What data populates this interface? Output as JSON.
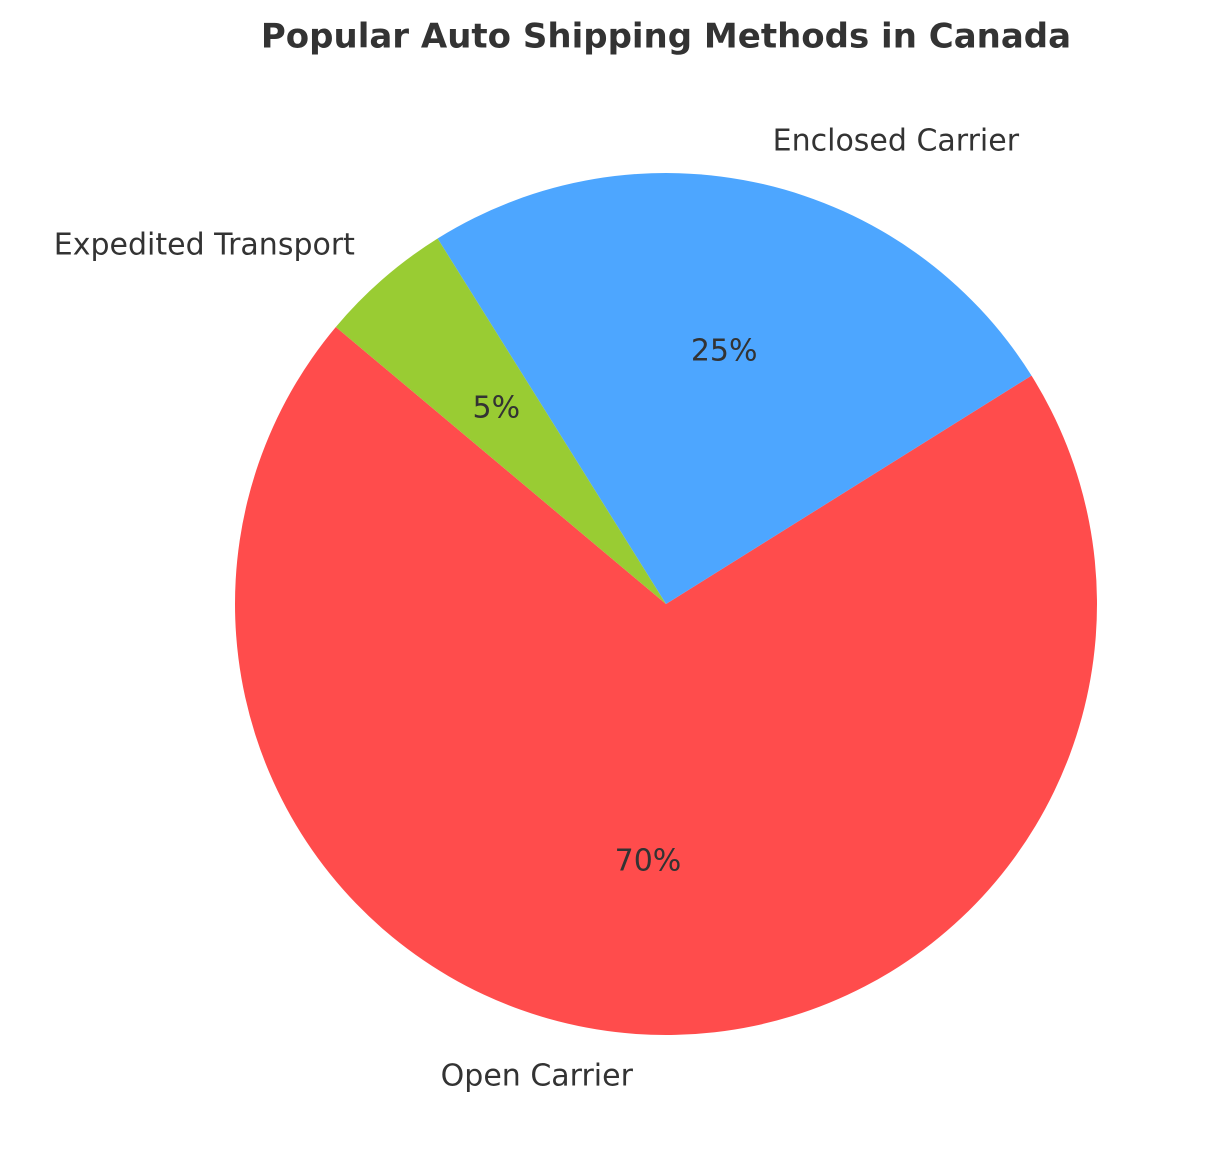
{
  "chart_data": {
    "type": "pie",
    "title": "Popular Auto Shipping Methods in Canada",
    "categories": [
      "Open Carrier",
      "Enclosed Carrier",
      "Expedited Transport"
    ],
    "values": [
      70,
      25,
      5
    ],
    "value_labels": [
      "70%",
      "25%",
      "5%"
    ],
    "colors": [
      "#ff4c4c",
      "#4da6ff",
      "#99cc33"
    ]
  }
}
